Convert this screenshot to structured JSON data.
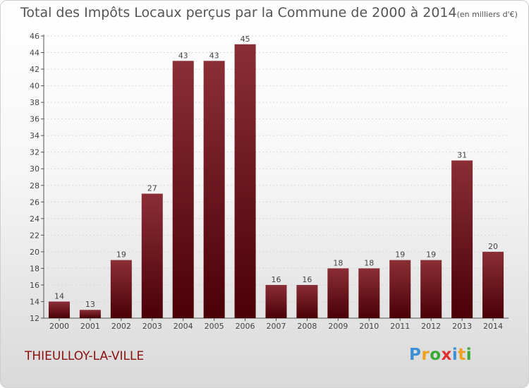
{
  "title": "Total des Impôts Locaux perçus par la Commune de 2000 à 2014",
  "title_unit": "(en milliers d'€)",
  "commune": "THIEULLOY-LA-VILLE",
  "logo": {
    "letters": [
      "P",
      "r",
      "o",
      "x",
      "i",
      "t",
      "i"
    ],
    "colors": [
      "#3d8fd6",
      "#f0a020",
      "#3aa935",
      "#e03030",
      "#3d8fd6",
      "#f0a020",
      "#3aa935"
    ]
  },
  "colors": {
    "bar_top": "#8b2e36",
    "bar_bottom": "#4a0007",
    "title": "#555555",
    "commune": "#8a1010"
  },
  "chart_data": {
    "type": "bar",
    "categories": [
      "2000",
      "2001",
      "2002",
      "2003",
      "2004",
      "2005",
      "2006",
      "2007",
      "2008",
      "2009",
      "2010",
      "2011",
      "2012",
      "2013",
      "2014"
    ],
    "values": [
      14,
      13,
      19,
      27,
      43,
      43,
      45,
      16,
      16,
      18,
      18,
      19,
      19,
      31,
      20
    ],
    "title": "Total des Impôts Locaux perçus par la Commune de 2000 à 2014",
    "xlabel": "",
    "ylabel": "",
    "ylim": [
      12,
      46
    ],
    "yticks": [
      12,
      14,
      16,
      18,
      20,
      22,
      24,
      26,
      28,
      30,
      32,
      34,
      36,
      38,
      40,
      42,
      44,
      46
    ],
    "grid": true
  }
}
